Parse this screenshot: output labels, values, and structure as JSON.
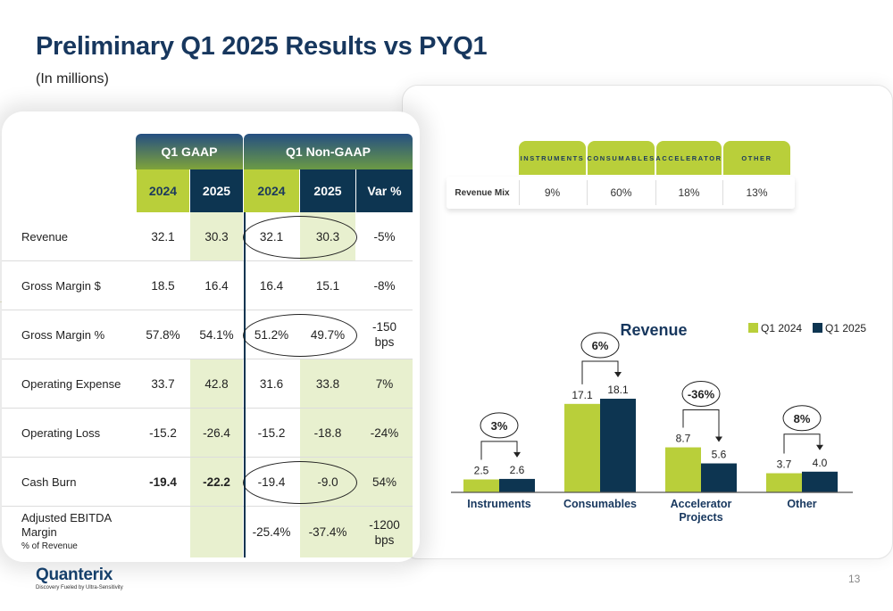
{
  "page": {
    "title": "Preliminary Q1 2025 Results vs PYQ1",
    "subtitle": "(In millions)",
    "page_number": "13"
  },
  "logo": {
    "name": "Quanterix",
    "tagline": "Discovery Fueled by Ultra-Sensitivity"
  },
  "results_table": {
    "group_headers": [
      "Q1 GAAP",
      "Q1 Non-GAAP"
    ],
    "columns": [
      "2024",
      "2025",
      "2024",
      "2025",
      "Var %"
    ],
    "rows": [
      {
        "label": "Revenue",
        "values": [
          "32.1",
          "30.3",
          "32.1",
          "30.3",
          "-5%"
        ]
      },
      {
        "label": "Gross Margin $",
        "values": [
          "18.5",
          "16.4",
          "16.4",
          "15.1",
          "-8%"
        ]
      },
      {
        "label": "Gross Margin %",
        "values": [
          "57.8%",
          "54.1%",
          "51.2%",
          "49.7%",
          "-150 bps"
        ]
      },
      {
        "label": "Operating Expense",
        "values": [
          "33.7",
          "42.8",
          "31.6",
          "33.8",
          "7%"
        ]
      },
      {
        "label": "Operating Loss",
        "values": [
          "-15.2",
          "-26.4",
          "-15.2",
          "-18.8",
          "-24%"
        ]
      },
      {
        "label": "Cash Burn",
        "values": [
          "-19.4",
          "-22.2",
          "-19.4",
          "-9.0",
          "54%"
        ]
      },
      {
        "label": "Adjusted EBITDA Margin",
        "sublabel": "% of Revenue",
        "values": [
          "",
          "",
          "-25.4%",
          "-37.4%",
          "-1200 bps"
        ]
      }
    ]
  },
  "revenue_mix": {
    "row_label": "Revenue Mix",
    "headers": [
      "INSTRUMENTS",
      "CONSUMABLES",
      "ACCELERATOR",
      "OTHER"
    ],
    "values": [
      "9%",
      "60%",
      "18%",
      "13%"
    ]
  },
  "colors": {
    "q1_2024": "#b9cf3a",
    "q1_2025": "#0d3551",
    "title": "#17375e"
  },
  "chart_data": {
    "type": "bar",
    "title": "Revenue",
    "categories": [
      "Instruments",
      "Consumables",
      "Accelerator Projects",
      "Other"
    ],
    "series": [
      {
        "name": "Q1 2024",
        "values": [
          2.5,
          17.1,
          8.7,
          3.7
        ]
      },
      {
        "name": "Q1 2025",
        "values": [
          2.6,
          18.1,
          5.6,
          4.0
        ]
      }
    ],
    "value_labels": [
      [
        "2.5",
        "17.1",
        "8.7",
        "3.7"
      ],
      [
        "2.6",
        "18.1",
        "5.6",
        "4.0"
      ]
    ],
    "change_labels": [
      "3%",
      "6%",
      "-36%",
      "8%"
    ],
    "legend_position": "top-right",
    "ylim": [
      0,
      20
    ],
    "xlabel": "",
    "ylabel": "",
    "grid": false
  }
}
